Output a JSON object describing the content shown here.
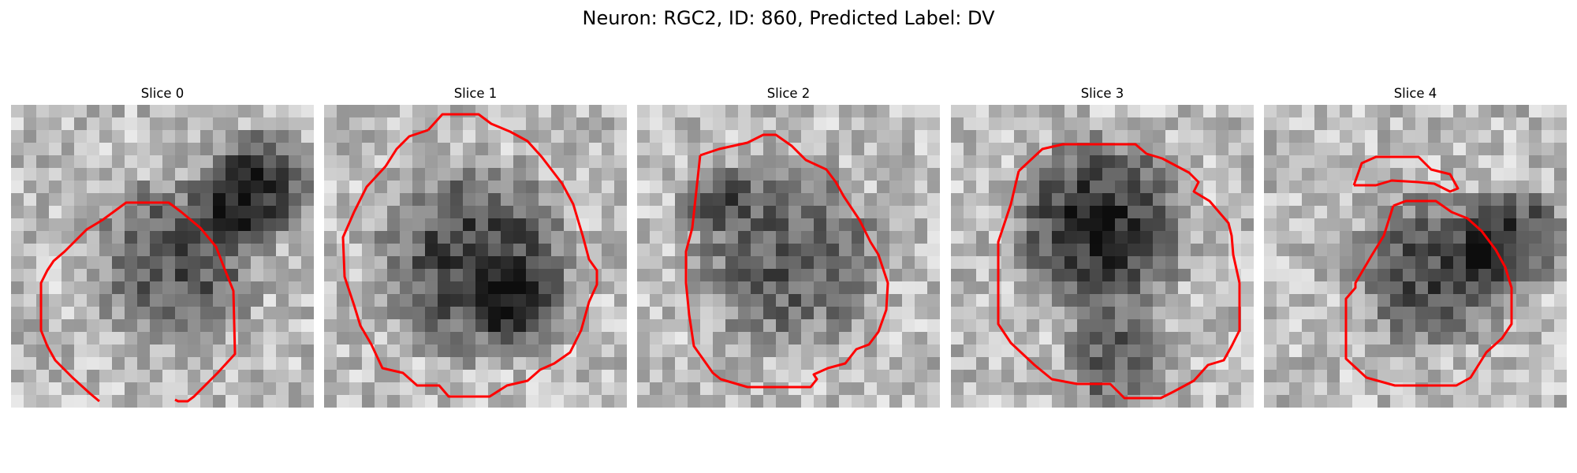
{
  "figure": {
    "title": "Neuron: RGC2, ID: 860, Predicted Label: DV",
    "contour_color": "#ff0000",
    "colormap": "grayscale",
    "panels": [
      {
        "title": "Slice 0"
      },
      {
        "title": "Slice 1"
      },
      {
        "title": "Slice 2"
      },
      {
        "title": "Slice 3"
      },
      {
        "title": "Slice 4"
      }
    ]
  }
}
